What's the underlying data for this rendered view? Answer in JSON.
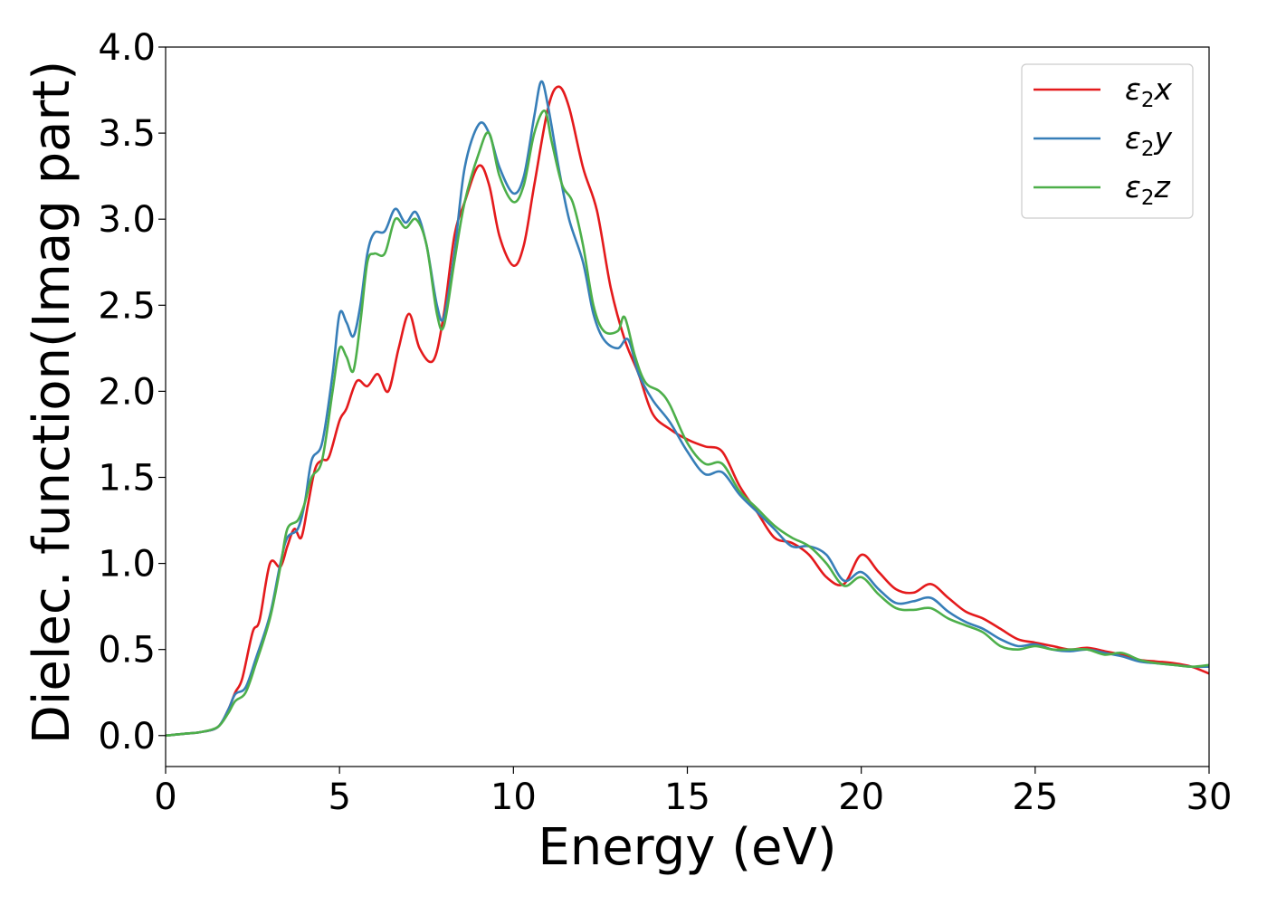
{
  "chart_data": {
    "type": "line",
    "xlabel": "Energy (eV)",
    "ylabel": "Dielec. function(Imag part)",
    "xlim": [
      0,
      30
    ],
    "ylim": [
      -0.18,
      4.0
    ],
    "xticks": [
      "0",
      "5",
      "10",
      "15",
      "20",
      "25",
      "30"
    ],
    "yticks": [
      "0.0",
      "0.5",
      "1.0",
      "1.5",
      "2.0",
      "2.5",
      "3.0",
      "3.5",
      "4.0"
    ],
    "grid": false,
    "legend_position": "top-right",
    "series": [
      {
        "name": "ε2x",
        "legend_base": "ε",
        "legend_sub": "2",
        "legend_suffix": "x",
        "color": "#e41a1c",
        "points": [
          [
            0,
            0
          ],
          [
            0.5,
            0.01
          ],
          [
            1,
            0.02
          ],
          [
            1.5,
            0.05
          ],
          [
            1.8,
            0.15
          ],
          [
            2,
            0.25
          ],
          [
            2.2,
            0.33
          ],
          [
            2.5,
            0.6
          ],
          [
            2.7,
            0.67
          ],
          [
            3,
            1.0
          ],
          [
            3.3,
            0.98
          ],
          [
            3.5,
            1.1
          ],
          [
            3.7,
            1.2
          ],
          [
            3.9,
            1.15
          ],
          [
            4.1,
            1.35
          ],
          [
            4.3,
            1.55
          ],
          [
            4.5,
            1.6
          ],
          [
            4.7,
            1.62
          ],
          [
            5,
            1.83
          ],
          [
            5.2,
            1.9
          ],
          [
            5.5,
            2.06
          ],
          [
            5.8,
            2.03
          ],
          [
            6.1,
            2.1
          ],
          [
            6.4,
            2.0
          ],
          [
            6.7,
            2.25
          ],
          [
            7,
            2.45
          ],
          [
            7.3,
            2.25
          ],
          [
            7.7,
            2.18
          ],
          [
            8,
            2.45
          ],
          [
            8.3,
            2.9
          ],
          [
            8.6,
            3.1
          ],
          [
            9,
            3.31
          ],
          [
            9.3,
            3.2
          ],
          [
            9.6,
            2.9
          ],
          [
            10,
            2.73
          ],
          [
            10.3,
            2.85
          ],
          [
            10.6,
            3.2
          ],
          [
            11,
            3.65
          ],
          [
            11.3,
            3.77
          ],
          [
            11.6,
            3.65
          ],
          [
            12,
            3.3
          ],
          [
            12.4,
            3.05
          ],
          [
            12.8,
            2.6
          ],
          [
            13.2,
            2.3
          ],
          [
            13.6,
            2.1
          ],
          [
            14,
            1.87
          ],
          [
            14.5,
            1.78
          ],
          [
            15,
            1.72
          ],
          [
            15.5,
            1.68
          ],
          [
            16,
            1.65
          ],
          [
            16.5,
            1.45
          ],
          [
            17,
            1.3
          ],
          [
            17.5,
            1.15
          ],
          [
            18,
            1.12
          ],
          [
            18.5,
            1.05
          ],
          [
            19,
            0.92
          ],
          [
            19.5,
            0.88
          ],
          [
            20,
            1.05
          ],
          [
            20.5,
            0.95
          ],
          [
            21,
            0.85
          ],
          [
            21.5,
            0.83
          ],
          [
            22,
            0.88
          ],
          [
            22.5,
            0.8
          ],
          [
            23,
            0.72
          ],
          [
            23.5,
            0.68
          ],
          [
            24,
            0.62
          ],
          [
            24.5,
            0.56
          ],
          [
            25,
            0.54
          ],
          [
            25.5,
            0.52
          ],
          [
            26,
            0.5
          ],
          [
            26.5,
            0.51
          ],
          [
            27,
            0.49
          ],
          [
            27.5,
            0.47
          ],
          [
            28,
            0.44
          ],
          [
            28.5,
            0.43
          ],
          [
            29,
            0.42
          ],
          [
            29.5,
            0.4
          ],
          [
            30,
            0.36
          ]
        ]
      },
      {
        "name": "ε2y",
        "legend_base": "ε",
        "legend_sub": "2",
        "legend_suffix": "y",
        "color": "#377eb8",
        "points": [
          [
            0,
            0
          ],
          [
            0.5,
            0.01
          ],
          [
            1,
            0.02
          ],
          [
            1.5,
            0.05
          ],
          [
            1.8,
            0.15
          ],
          [
            2,
            0.24
          ],
          [
            2.3,
            0.28
          ],
          [
            2.6,
            0.45
          ],
          [
            3,
            0.7
          ],
          [
            3.3,
            1.0
          ],
          [
            3.5,
            1.15
          ],
          [
            3.8,
            1.2
          ],
          [
            4,
            1.35
          ],
          [
            4.2,
            1.6
          ],
          [
            4.5,
            1.7
          ],
          [
            4.8,
            2.1
          ],
          [
            5,
            2.45
          ],
          [
            5.2,
            2.4
          ],
          [
            5.4,
            2.32
          ],
          [
            5.6,
            2.5
          ],
          [
            5.8,
            2.8
          ],
          [
            6,
            2.92
          ],
          [
            6.3,
            2.93
          ],
          [
            6.6,
            3.06
          ],
          [
            6.9,
            2.98
          ],
          [
            7.2,
            3.04
          ],
          [
            7.5,
            2.85
          ],
          [
            7.8,
            2.5
          ],
          [
            8,
            2.43
          ],
          [
            8.3,
            2.8
          ],
          [
            8.6,
            3.3
          ],
          [
            9,
            3.55
          ],
          [
            9.3,
            3.5
          ],
          [
            9.6,
            3.3
          ],
          [
            10,
            3.15
          ],
          [
            10.3,
            3.25
          ],
          [
            10.6,
            3.6
          ],
          [
            10.8,
            3.8
          ],
          [
            11,
            3.65
          ],
          [
            11.3,
            3.3
          ],
          [
            11.6,
            3.0
          ],
          [
            12,
            2.75
          ],
          [
            12.3,
            2.45
          ],
          [
            12.6,
            2.3
          ],
          [
            13,
            2.25
          ],
          [
            13.3,
            2.3
          ],
          [
            13.6,
            2.1
          ],
          [
            14,
            1.95
          ],
          [
            14.5,
            1.82
          ],
          [
            15,
            1.65
          ],
          [
            15.5,
            1.52
          ],
          [
            16,
            1.53
          ],
          [
            16.5,
            1.4
          ],
          [
            17,
            1.3
          ],
          [
            17.5,
            1.2
          ],
          [
            18,
            1.1
          ],
          [
            18.5,
            1.1
          ],
          [
            19,
            1.05
          ],
          [
            19.5,
            0.9
          ],
          [
            20,
            0.95
          ],
          [
            20.5,
            0.85
          ],
          [
            21,
            0.77
          ],
          [
            21.5,
            0.78
          ],
          [
            22,
            0.8
          ],
          [
            22.5,
            0.72
          ],
          [
            23,
            0.66
          ],
          [
            23.5,
            0.62
          ],
          [
            24,
            0.56
          ],
          [
            24.5,
            0.52
          ],
          [
            25,
            0.53
          ],
          [
            25.5,
            0.5
          ],
          [
            26,
            0.49
          ],
          [
            26.5,
            0.5
          ],
          [
            27,
            0.48
          ],
          [
            27.5,
            0.46
          ],
          [
            28,
            0.43
          ],
          [
            28.5,
            0.42
          ],
          [
            29,
            0.41
          ],
          [
            29.5,
            0.4
          ],
          [
            30,
            0.4
          ]
        ]
      },
      {
        "name": "ε2z",
        "legend_base": "ε",
        "legend_sub": "2",
        "legend_suffix": "z",
        "color": "#4daf4a",
        "points": [
          [
            0,
            0
          ],
          [
            0.5,
            0.01
          ],
          [
            1,
            0.02
          ],
          [
            1.5,
            0.05
          ],
          [
            1.8,
            0.13
          ],
          [
            2,
            0.2
          ],
          [
            2.3,
            0.25
          ],
          [
            2.6,
            0.42
          ],
          [
            3,
            0.68
          ],
          [
            3.3,
            0.98
          ],
          [
            3.5,
            1.2
          ],
          [
            3.8,
            1.25
          ],
          [
            4,
            1.35
          ],
          [
            4.2,
            1.5
          ],
          [
            4.5,
            1.6
          ],
          [
            4.8,
            2.0
          ],
          [
            5,
            2.25
          ],
          [
            5.2,
            2.2
          ],
          [
            5.4,
            2.12
          ],
          [
            5.6,
            2.4
          ],
          [
            5.8,
            2.75
          ],
          [
            6,
            2.8
          ],
          [
            6.3,
            2.8
          ],
          [
            6.6,
            3.0
          ],
          [
            6.9,
            2.95
          ],
          [
            7.2,
            3.0
          ],
          [
            7.5,
            2.85
          ],
          [
            7.8,
            2.45
          ],
          [
            8,
            2.38
          ],
          [
            8.3,
            2.75
          ],
          [
            8.6,
            3.1
          ],
          [
            9,
            3.38
          ],
          [
            9.3,
            3.5
          ],
          [
            9.6,
            3.25
          ],
          [
            10,
            3.1
          ],
          [
            10.3,
            3.2
          ],
          [
            10.6,
            3.5
          ],
          [
            10.9,
            3.63
          ],
          [
            11.1,
            3.45
          ],
          [
            11.4,
            3.2
          ],
          [
            11.7,
            3.1
          ],
          [
            12,
            2.85
          ],
          [
            12.3,
            2.5
          ],
          [
            12.6,
            2.35
          ],
          [
            13,
            2.35
          ],
          [
            13.2,
            2.43
          ],
          [
            13.5,
            2.2
          ],
          [
            13.8,
            2.05
          ],
          [
            14.2,
            2.0
          ],
          [
            14.5,
            1.92
          ],
          [
            15,
            1.7
          ],
          [
            15.5,
            1.58
          ],
          [
            16,
            1.58
          ],
          [
            16.5,
            1.42
          ],
          [
            17,
            1.32
          ],
          [
            17.5,
            1.22
          ],
          [
            18,
            1.15
          ],
          [
            18.5,
            1.1
          ],
          [
            19,
            1.0
          ],
          [
            19.5,
            0.87
          ],
          [
            20,
            0.92
          ],
          [
            20.5,
            0.82
          ],
          [
            21,
            0.74
          ],
          [
            21.5,
            0.73
          ],
          [
            22,
            0.74
          ],
          [
            22.5,
            0.68
          ],
          [
            23,
            0.64
          ],
          [
            23.5,
            0.6
          ],
          [
            24,
            0.52
          ],
          [
            24.5,
            0.5
          ],
          [
            25,
            0.52
          ],
          [
            25.5,
            0.5
          ],
          [
            26,
            0.5
          ],
          [
            26.5,
            0.5
          ],
          [
            27,
            0.47
          ],
          [
            27.5,
            0.48
          ],
          [
            28,
            0.44
          ],
          [
            28.5,
            0.42
          ],
          [
            29,
            0.41
          ],
          [
            29.5,
            0.4
          ],
          [
            30,
            0.41
          ]
        ]
      }
    ]
  }
}
